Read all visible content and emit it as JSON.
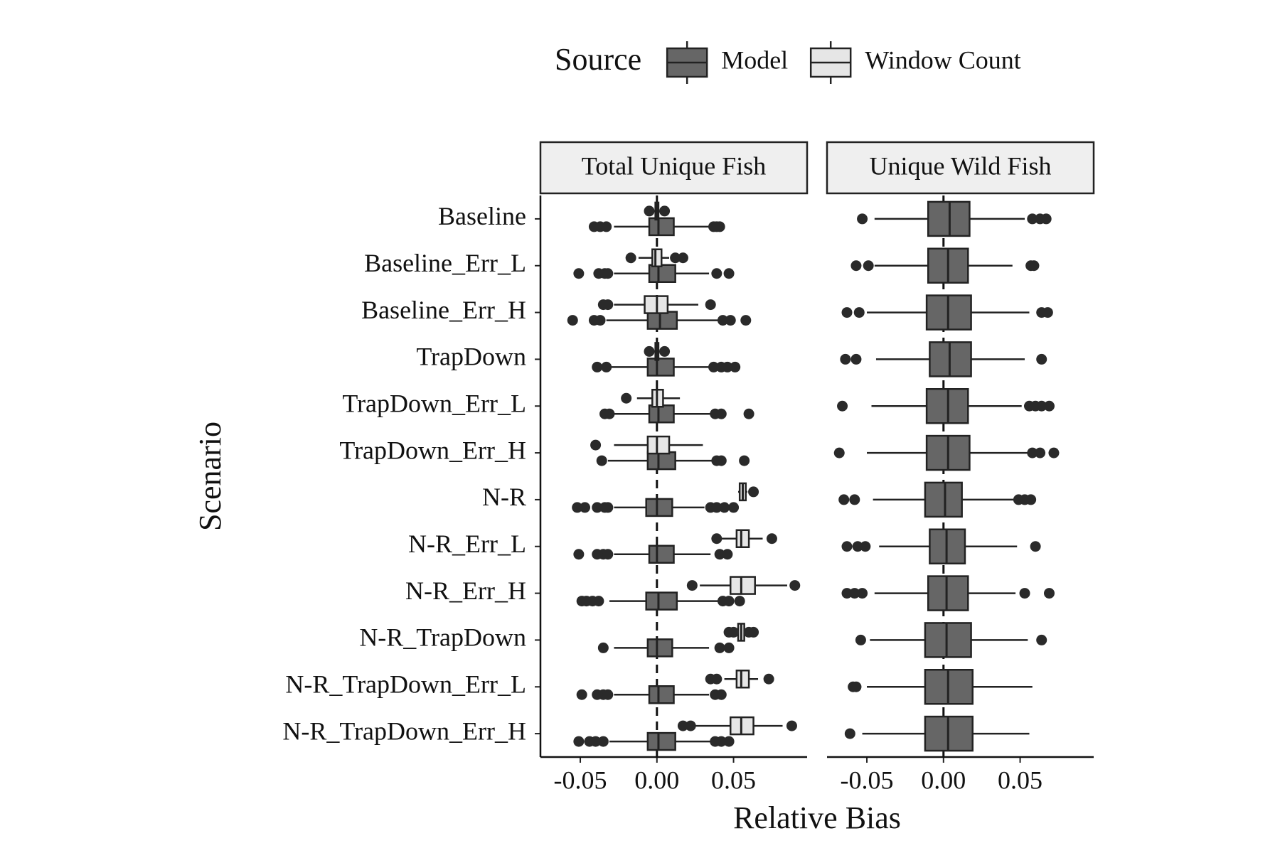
{
  "chart_data": [
    {
      "type": "boxplot",
      "title": "Total Unique Fish",
      "legend_title": "Source",
      "xlabel": "Relative Bias",
      "ylabel": "Scenario",
      "categories": [
        "Baseline",
        "Baseline_Err_L",
        "Baseline_Err_H",
        "TrapDown",
        "TrapDown_Err_L",
        "TrapDown_Err_H",
        "N-R",
        "N-R_Err_L",
        "N-R_Err_H",
        "N-R_TrapDown",
        "N-R_TrapDown_Err_L",
        "N-R_TrapDown_Err_H"
      ],
      "xlim": [
        -0.076,
        0.098
      ],
      "xticks": [
        -0.05,
        {
          "value": 0,
          "label": "0.00"
        },
        0.05
      ],
      "ref_line": 0,
      "series": [
        {
          "name": "Model",
          "color": "#666666",
          "boxes": [
            {
              "whislo": -0.028,
              "q1": -0.005,
              "med": 0.001,
              "q3": 0.011,
              "whishi": 0.035,
              "fliers": [
                -0.041,
                -0.037,
                -0.033,
                0.037,
                0.039,
                0.041
              ]
            },
            {
              "whislo": -0.028,
              "q1": -0.005,
              "med": 0.001,
              "q3": 0.012,
              "whishi": 0.034,
              "fliers": [
                -0.051,
                -0.038,
                -0.034,
                -0.032,
                0.039,
                0.047
              ]
            },
            {
              "whislo": -0.033,
              "q1": -0.006,
              "med": 0.002,
              "q3": 0.013,
              "whishi": 0.04,
              "fliers": [
                -0.055,
                -0.041,
                -0.037,
                0.043,
                0.048,
                0.058
              ]
            },
            {
              "whislo": -0.03,
              "q1": -0.006,
              "med": 0.0,
              "q3": 0.011,
              "whishi": 0.034,
              "fliers": [
                -0.039,
                -0.033,
                0.037,
                0.042,
                0.046,
                0.051
              ]
            },
            {
              "whislo": -0.028,
              "q1": -0.005,
              "med": 0.001,
              "q3": 0.011,
              "whishi": 0.035,
              "fliers": [
                -0.034,
                -0.031,
                0.038,
                0.042,
                0.06
              ]
            },
            {
              "whislo": -0.032,
              "q1": -0.006,
              "med": 0.001,
              "q3": 0.012,
              "whishi": 0.037,
              "fliers": [
                -0.036,
                0.039,
                0.042,
                0.057
              ]
            },
            {
              "whislo": -0.028,
              "q1": -0.007,
              "med": 0.0,
              "q3": 0.01,
              "whishi": 0.031,
              "fliers": [
                -0.052,
                -0.047,
                -0.039,
                -0.034,
                -0.032,
                0.035,
                0.039,
                0.044,
                0.05
              ]
            },
            {
              "whislo": -0.028,
              "q1": -0.005,
              "med": 0.0,
              "q3": 0.011,
              "whishi": 0.035,
              "fliers": [
                -0.051,
                -0.039,
                -0.035,
                -0.032,
                0.041,
                0.046
              ]
            },
            {
              "whislo": -0.031,
              "q1": -0.007,
              "med": 0.001,
              "q3": 0.013,
              "whishi": 0.04,
              "fliers": [
                -0.049,
                -0.046,
                -0.042,
                -0.038,
                0.043,
                0.047,
                0.054
              ]
            },
            {
              "whislo": -0.028,
              "q1": -0.006,
              "med": 0.0,
              "q3": 0.01,
              "whishi": 0.034,
              "fliers": [
                -0.035,
                0.041,
                0.047
              ]
            },
            {
              "whislo": -0.028,
              "q1": -0.005,
              "med": 0.001,
              "q3": 0.011,
              "whishi": 0.034,
              "fliers": [
                -0.049,
                -0.039,
                -0.035,
                -0.032,
                0.038,
                0.042
              ]
            },
            {
              "whislo": -0.031,
              "q1": -0.006,
              "med": 0.001,
              "q3": 0.012,
              "whishi": 0.035,
              "fliers": [
                -0.051,
                -0.044,
                -0.04,
                -0.035,
                0.038,
                0.042,
                0.047
              ]
            }
          ]
        },
        {
          "name": "Window Count",
          "color": "#e6e6e6",
          "boxes": [
            {
              "whislo": -0.002,
              "q1": -0.001,
              "med": 0.0,
              "q3": 0.001,
              "whishi": 0.002,
              "fliers": [
                -0.005,
                0.005
              ]
            },
            {
              "whislo": -0.012,
              "q1": -0.003,
              "med": -0.001,
              "q3": 0.003,
              "whishi": 0.008,
              "fliers": [
                -0.017,
                0.012,
                0.017
              ]
            },
            {
              "whislo": -0.028,
              "q1": -0.008,
              "med": 0.0,
              "q3": 0.007,
              "whishi": 0.027,
              "fliers": [
                -0.035,
                -0.032,
                0.035
              ]
            },
            {
              "whislo": -0.002,
              "q1": -0.001,
              "med": 0.0,
              "q3": 0.001,
              "whishi": 0.002,
              "fliers": [
                -0.005,
                0.005
              ]
            },
            {
              "whislo": -0.013,
              "q1": -0.003,
              "med": 0.0,
              "q3": 0.004,
              "whishi": 0.015,
              "fliers": [
                -0.02
              ]
            },
            {
              "whislo": -0.028,
              "q1": -0.006,
              "med": 0.0,
              "q3": 0.008,
              "whishi": 0.03,
              "fliers": [
                -0.04
              ]
            },
            {
              "whislo": 0.053,
              "q1": 0.054,
              "med": 0.056,
              "q3": 0.058,
              "whishi": 0.059,
              "fliers": [
                0.063
              ]
            },
            {
              "whislo": 0.042,
              "q1": 0.052,
              "med": 0.055,
              "q3": 0.06,
              "whishi": 0.069,
              "fliers": [
                0.039,
                0.075
              ]
            },
            {
              "whislo": 0.028,
              "q1": 0.048,
              "med": 0.055,
              "q3": 0.064,
              "whishi": 0.085,
              "fliers": [
                0.023,
                0.09
              ]
            },
            {
              "whislo": 0.052,
              "q1": 0.053,
              "med": 0.055,
              "q3": 0.057,
              "whishi": 0.058,
              "fliers": [
                0.047,
                0.05,
                0.06,
                0.063
              ]
            },
            {
              "whislo": 0.044,
              "q1": 0.052,
              "med": 0.055,
              "q3": 0.06,
              "whishi": 0.066,
              "fliers": [
                0.035,
                0.039,
                0.073
              ]
            },
            {
              "whislo": 0.024,
              "q1": 0.048,
              "med": 0.055,
              "q3": 0.063,
              "whishi": 0.082,
              "fliers": [
                0.017,
                0.022,
                0.088
              ]
            }
          ]
        }
      ]
    },
    {
      "type": "boxplot",
      "title": "Unique Wild Fish",
      "xlim": [
        -0.076,
        0.098
      ],
      "xticks": [
        -0.05,
        {
          "value": 0,
          "label": "0.00"
        },
        0.05
      ],
      "ref_line": 0,
      "series": [
        {
          "name": "Model",
          "color": "#666666",
          "boxes": [
            {
              "whislo": -0.045,
              "q1": -0.01,
              "med": 0.004,
              "q3": 0.017,
              "whishi": 0.053,
              "fliers": [
                -0.053,
                0.058,
                0.063,
                0.067
              ]
            },
            {
              "whislo": -0.045,
              "q1": -0.01,
              "med": 0.003,
              "q3": 0.016,
              "whishi": 0.045,
              "fliers": [
                -0.057,
                -0.049,
                0.057,
                0.059
              ]
            },
            {
              "whislo": -0.05,
              "q1": -0.011,
              "med": 0.003,
              "q3": 0.018,
              "whishi": 0.056,
              "fliers": [
                -0.063,
                -0.055,
                0.064,
                0.068
              ]
            },
            {
              "whislo": -0.044,
              "q1": -0.009,
              "med": 0.004,
              "q3": 0.018,
              "whishi": 0.053,
              "fliers": [
                -0.064,
                -0.057,
                0.064
              ]
            },
            {
              "whislo": -0.047,
              "q1": -0.011,
              "med": 0.003,
              "q3": 0.016,
              "whishi": 0.051,
              "fliers": [
                -0.066,
                0.056,
                0.06,
                0.064,
                0.069
              ]
            },
            {
              "whislo": -0.05,
              "q1": -0.011,
              "med": 0.003,
              "q3": 0.017,
              "whishi": 0.055,
              "fliers": [
                -0.068,
                0.058,
                0.063,
                0.072
              ]
            },
            {
              "whislo": -0.046,
              "q1": -0.012,
              "med": 0.001,
              "q3": 0.012,
              "whishi": 0.046,
              "fliers": [
                -0.065,
                -0.058,
                0.049,
                0.053,
                0.057
              ]
            },
            {
              "whislo": -0.042,
              "q1": -0.009,
              "med": 0.002,
              "q3": 0.014,
              "whishi": 0.048,
              "fliers": [
                -0.063,
                -0.056,
                -0.051,
                0.06
              ]
            },
            {
              "whislo": -0.045,
              "q1": -0.01,
              "med": 0.002,
              "q3": 0.016,
              "whishi": 0.047,
              "fliers": [
                -0.063,
                -0.058,
                -0.053,
                0.053,
                0.069
              ]
            },
            {
              "whislo": -0.048,
              "q1": -0.012,
              "med": 0.002,
              "q3": 0.018,
              "whishi": 0.055,
              "fliers": [
                -0.054,
                0.064
              ]
            },
            {
              "whislo": -0.05,
              "q1": -0.012,
              "med": 0.003,
              "q3": 0.019,
              "whishi": 0.058,
              "fliers": [
                -0.059,
                -0.057
              ]
            },
            {
              "whislo": -0.053,
              "q1": -0.012,
              "med": 0.003,
              "q3": 0.019,
              "whishi": 0.056,
              "fliers": [
                -0.061
              ]
            }
          ]
        }
      ]
    }
  ]
}
